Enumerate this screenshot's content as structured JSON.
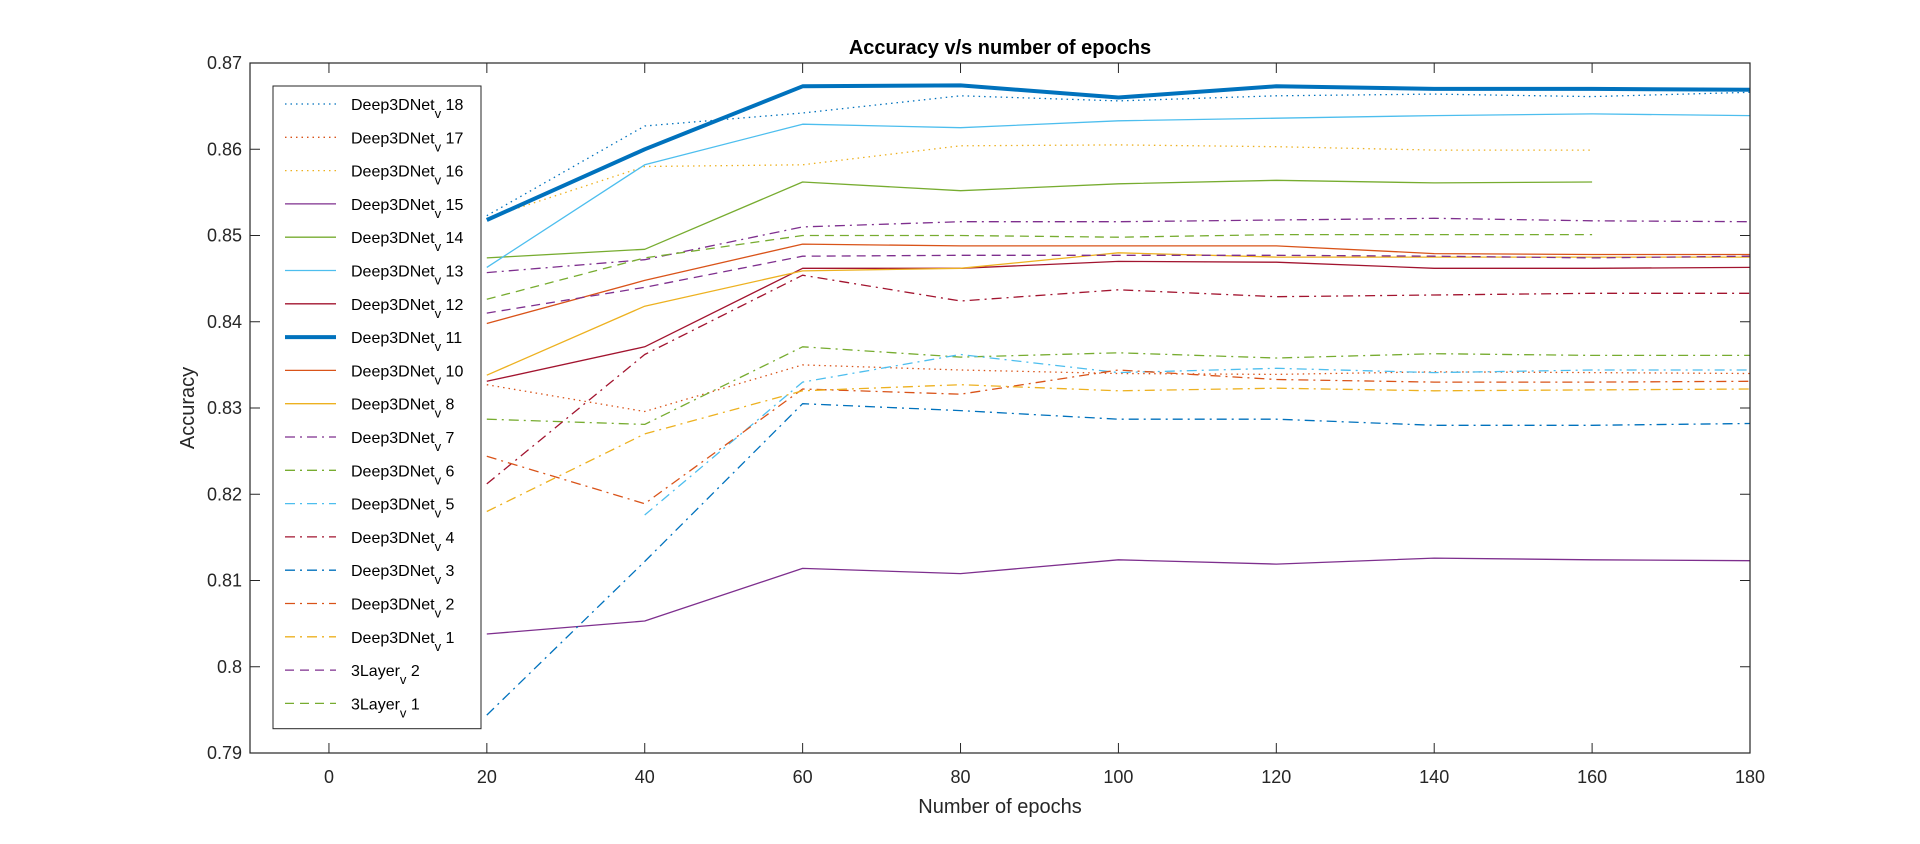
{
  "chart_data": {
    "type": "line",
    "title": "Accuracy v/s number of epochs",
    "xlabel": "Number of epochs",
    "ylabel": "Accuracy",
    "xlim": [
      -10,
      180
    ],
    "ylim": [
      0.79,
      0.87
    ],
    "xticks": [
      0,
      20,
      40,
      60,
      80,
      100,
      120,
      140,
      160,
      180
    ],
    "yticks": [
      0.79,
      0.8,
      0.81,
      0.82,
      0.83,
      0.84,
      0.85,
      0.86,
      0.87
    ],
    "ytick_labels": [
      "0.79",
      "0.8",
      "0.81",
      "0.82",
      "0.83",
      "0.84",
      "0.85",
      "0.86",
      "0.87"
    ],
    "grid": false,
    "legend_position": "top-left",
    "series": [
      {
        "name": "Deep3DNet_v 18",
        "base": "Deep3DNet",
        "sub": "v",
        "suffix": "18",
        "color": "#0072BD",
        "style": "dotted",
        "x": [
          20,
          40,
          60,
          80,
          100,
          120,
          140,
          160,
          180
        ],
        "values": [
          0.8523,
          0.8627,
          0.8642,
          0.8662,
          0.8656,
          0.8662,
          0.8664,
          0.8661,
          0.8666
        ]
      },
      {
        "name": "Deep3DNet_v 17",
        "base": "Deep3DNet",
        "sub": "v",
        "suffix": "17",
        "color": "#D95319",
        "style": "dotted",
        "x": [
          20,
          40,
          60,
          80,
          100,
          120,
          140,
          160,
          180
        ],
        "values": [
          0.8327,
          0.8296,
          0.835,
          0.8344,
          0.834,
          0.8339,
          0.8342,
          0.8341,
          0.834
        ]
      },
      {
        "name": "Deep3DNet_v 16",
        "base": "Deep3DNet",
        "sub": "v",
        "suffix": "16",
        "color": "#EDB120",
        "style": "dotted",
        "x": [
          20,
          40,
          60,
          80,
          100,
          120,
          140,
          160
        ],
        "values": [
          0.852,
          0.858,
          0.8582,
          0.8604,
          0.8605,
          0.8603,
          0.8599,
          0.8599
        ]
      },
      {
        "name": "Deep3DNet_v 15",
        "base": "Deep3DNet",
        "sub": "v",
        "suffix": "15",
        "color": "#7E2F8E",
        "style": "solid",
        "x": [
          20,
          40,
          60,
          80,
          100,
          120,
          140,
          160,
          180
        ],
        "values": [
          0.8038,
          0.8053,
          0.8114,
          0.8108,
          0.8124,
          0.8119,
          0.8126,
          0.8124,
          0.8123
        ]
      },
      {
        "name": "Deep3DNet_v 14",
        "base": "Deep3DNet",
        "sub": "v",
        "suffix": "14",
        "color": "#77AC30",
        "style": "solid",
        "x": [
          20,
          40,
          60,
          80,
          100,
          120,
          140,
          160
        ],
        "values": [
          0.8474,
          0.8484,
          0.8562,
          0.8552,
          0.856,
          0.8564,
          0.8561,
          0.8562
        ]
      },
      {
        "name": "Deep3DNet_v 13",
        "base": "Deep3DNet",
        "sub": "v",
        "suffix": "13",
        "color": "#4DBEEE",
        "style": "solid",
        "x": [
          20,
          40,
          60,
          80,
          100,
          120,
          140,
          160,
          180
        ],
        "values": [
          0.8463,
          0.8582,
          0.8629,
          0.8625,
          0.8633,
          0.8636,
          0.8639,
          0.8641,
          0.8639
        ]
      },
      {
        "name": "Deep3DNet_v 12",
        "base": "Deep3DNet",
        "sub": "v",
        "suffix": "12",
        "color": "#A2142F",
        "style": "solid",
        "x": [
          20,
          40,
          60,
          80,
          100,
          120,
          140,
          160,
          180
        ],
        "values": [
          0.8331,
          0.8371,
          0.8462,
          0.8462,
          0.847,
          0.8469,
          0.8462,
          0.8462,
          0.8463
        ]
      },
      {
        "name": "Deep3DNet_v 11",
        "base": "Deep3DNet",
        "sub": "v",
        "suffix": "11",
        "color": "#0072BD",
        "style": "solid",
        "width": 4,
        "x": [
          20,
          40,
          60,
          80,
          100,
          120,
          140,
          160,
          180
        ],
        "values": [
          0.8518,
          0.86,
          0.8673,
          0.8674,
          0.866,
          0.8673,
          0.867,
          0.867,
          0.8669
        ]
      },
      {
        "name": "Deep3DNet_v 10",
        "base": "Deep3DNet",
        "sub": "v",
        "suffix": "10",
        "color": "#D95319",
        "style": "solid",
        "x": [
          20,
          40,
          60,
          80,
          100,
          120,
          140,
          160,
          180
        ],
        "values": [
          0.8398,
          0.8448,
          0.849,
          0.8488,
          0.8488,
          0.8488,
          0.8479,
          0.8478,
          0.8478
        ]
      },
      {
        "name": "Deep3DNet_v 8",
        "base": "Deep3DNet",
        "sub": "v",
        "suffix": "8",
        "color": "#EDB120",
        "style": "solid",
        "x": [
          20,
          40,
          60,
          80,
          100,
          120,
          140,
          160,
          180
        ],
        "values": [
          0.8338,
          0.8418,
          0.8459,
          0.8462,
          0.848,
          0.8475,
          0.8475,
          0.8475,
          0.8475
        ]
      },
      {
        "name": "Deep3DNet_v 7",
        "base": "Deep3DNet",
        "sub": "v",
        "suffix": "7",
        "color": "#7E2F8E",
        "style": "dashdot",
        "x": [
          20,
          40,
          60,
          80,
          100,
          120,
          140,
          160,
          180
        ],
        "values": [
          0.8457,
          0.8472,
          0.851,
          0.8516,
          0.8516,
          0.8518,
          0.852,
          0.8517,
          0.8516
        ]
      },
      {
        "name": "Deep3DNet_v 6",
        "base": "Deep3DNet",
        "sub": "v",
        "suffix": "6",
        "color": "#77AC30",
        "style": "dashdot",
        "x": [
          20,
          40,
          60,
          80,
          100,
          120,
          140,
          160,
          180
        ],
        "values": [
          0.8287,
          0.8281,
          0.8371,
          0.8359,
          0.8364,
          0.8358,
          0.8363,
          0.8361,
          0.8361
        ]
      },
      {
        "name": "Deep3DNet_v 5",
        "base": "Deep3DNet",
        "sub": "v",
        "suffix": "5",
        "color": "#4DBEEE",
        "style": "dashdot",
        "x": [
          40,
          60,
          80,
          100,
          120,
          140,
          160,
          180
        ],
        "values": [
          0.8176,
          0.833,
          0.8362,
          0.8341,
          0.8346,
          0.8341,
          0.8344,
          0.8344
        ]
      },
      {
        "name": "Deep3DNet_v 4",
        "base": "Deep3DNet",
        "sub": "v",
        "suffix": "4",
        "color": "#A2142F",
        "style": "dashdot",
        "x": [
          20,
          40,
          60,
          80,
          100,
          120,
          140,
          160,
          180
        ],
        "values": [
          0.8212,
          0.8362,
          0.8454,
          0.8424,
          0.8437,
          0.8429,
          0.8431,
          0.8433,
          0.8433
        ]
      },
      {
        "name": "Deep3DNet_v 3",
        "base": "Deep3DNet",
        "sub": "v",
        "suffix": "3",
        "color": "#0072BD",
        "style": "dashdot",
        "x": [
          20,
          40,
          60,
          80,
          100,
          120,
          140,
          160,
          180
        ],
        "values": [
          0.7944,
          0.8122,
          0.8305,
          0.8297,
          0.8287,
          0.8287,
          0.828,
          0.828,
          0.8282
        ]
      },
      {
        "name": "Deep3DNet_v 2",
        "base": "Deep3DNet",
        "sub": "v",
        "suffix": "2",
        "color": "#D95319",
        "style": "dashdot",
        "x": [
          20,
          40,
          60,
          80,
          100,
          120,
          140,
          160,
          180
        ],
        "values": [
          0.8244,
          0.8189,
          0.8322,
          0.8316,
          0.8344,
          0.8333,
          0.833,
          0.833,
          0.8331
        ]
      },
      {
        "name": "Deep3DNet_v 1",
        "base": "Deep3DNet",
        "sub": "v",
        "suffix": "1",
        "color": "#EDB120",
        "style": "dashdot",
        "x": [
          20,
          40,
          60,
          80,
          100,
          120,
          140,
          160,
          180
        ],
        "values": [
          0.818,
          0.827,
          0.832,
          0.8327,
          0.832,
          0.8323,
          0.832,
          0.8321,
          0.8322
        ]
      },
      {
        "name": "3Layer_v 2",
        "base": "3Layer",
        "sub": "v",
        "suffix": "2",
        "color": "#7E2F8E",
        "style": "dashed",
        "x": [
          20,
          40,
          60,
          80,
          100,
          120,
          140,
          160,
          180
        ],
        "values": [
          0.841,
          0.844,
          0.8476,
          0.8477,
          0.8477,
          0.8477,
          0.8476,
          0.8474,
          0.8476
        ]
      },
      {
        "name": "3Layer_v 1",
        "base": "3Layer",
        "sub": "v",
        "suffix": "1",
        "color": "#77AC30",
        "style": "dashed",
        "x": [
          20,
          40,
          60,
          80,
          100,
          120,
          140,
          160
        ],
        "values": [
          0.8426,
          0.8474,
          0.85,
          0.85,
          0.8498,
          0.8501,
          0.8501,
          0.8501
        ]
      }
    ]
  }
}
